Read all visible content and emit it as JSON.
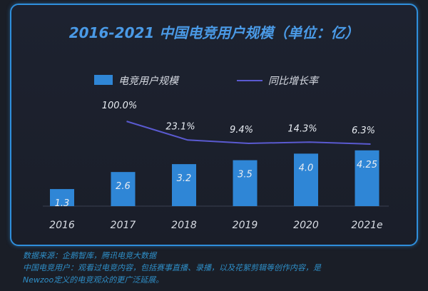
{
  "title": "2016-2021 中国电竞用户规模（单位：亿）",
  "chart_data": {
    "type": "bar",
    "title": "2016-2021 中国电竞用户规模（单位：亿）",
    "categories": [
      "2016",
      "2017",
      "2018",
      "2019",
      "2020",
      "2021e"
    ],
    "series": [
      {
        "name": "电竞用户规模",
        "type": "bar",
        "values": [
          1.3,
          2.6,
          3.2,
          3.5,
          4.0,
          4.25
        ],
        "labels": [
          "1.3",
          "2.6",
          "3.2",
          "3.5",
          "4.0",
          "4.25"
        ],
        "color": "#2f86d6"
      },
      {
        "name": "同比增长率",
        "type": "line",
        "values": [
          null,
          100.0,
          23.1,
          9.4,
          14.3,
          6.3
        ],
        "labels": [
          "",
          "100.0%",
          "23.1%",
          "9.4%",
          "14.3%",
          "6.3%"
        ],
        "color": "#5a5ad0"
      }
    ],
    "legend": "top-center",
    "grid": false
  },
  "footnotes": [
    "数据来源：企鹅智库，腾讯电竞大数据",
    "中国电竞用户：观看过电竞内容，包括赛事直播、录播，以及花絮剪辑等创作内容，是",
    "Newzoo定义的电竞观众的更广泛延展。"
  ]
}
